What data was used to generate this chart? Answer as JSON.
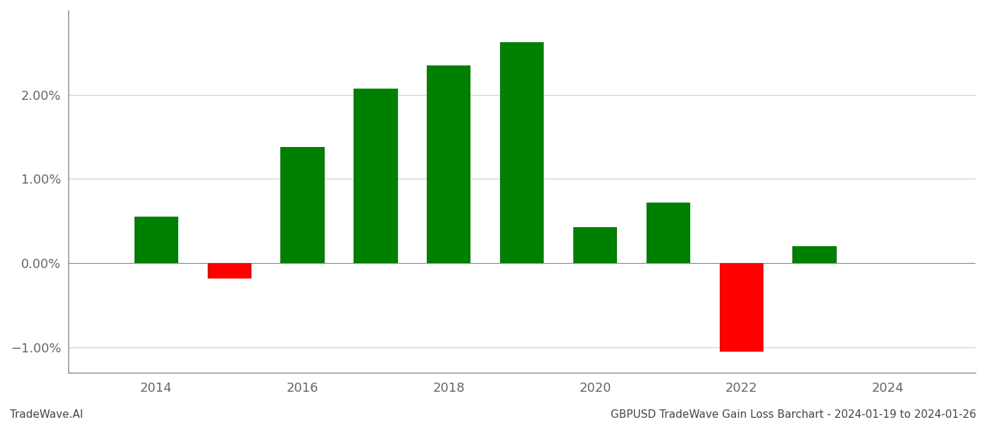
{
  "years": [
    2014,
    2015,
    2016,
    2017,
    2018,
    2019,
    2020,
    2021,
    2022,
    2023
  ],
  "values": [
    0.0055,
    -0.0018,
    0.0138,
    0.0207,
    0.0235,
    0.0262,
    0.0043,
    0.0072,
    -0.0105,
    0.002
  ],
  "colors_positive": "#008000",
  "colors_negative": "#ff0000",
  "ylim": [
    -0.013,
    0.03
  ],
  "yticks": [
    -0.01,
    0.0,
    0.01,
    0.02
  ],
  "ytick_labels": [
    "−1.00%",
    "0.00%",
    "1.00%",
    "2.00%"
  ],
  "xlabel": "",
  "ylabel": "",
  "title": "",
  "footer_left": "TradeWave.AI",
  "footer_right": "GBPUSD TradeWave Gain Loss Barchart - 2024-01-19 to 2024-01-26",
  "background_color": "#ffffff",
  "grid_color": "#cccccc",
  "bar_width": 0.6,
  "xlim": [
    2012.8,
    2025.2
  ],
  "xticks": [
    2014,
    2016,
    2018,
    2020,
    2022,
    2024
  ],
  "tick_fontsize": 13,
  "footer_fontsize": 11,
  "spine_color": "#888888"
}
